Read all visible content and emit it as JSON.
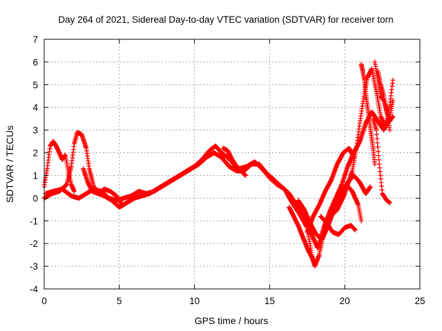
{
  "chart_data": {
    "type": "scatter",
    "title": "Day 264 of 2021, Sidereal Day-to-day VTEC variation (SDTVAR) for receiver torn",
    "xlabel": "GPS time / hours",
    "ylabel": "SDTVAR / TECUs",
    "xlim": [
      0,
      25
    ],
    "ylim": [
      -4,
      7
    ],
    "xticks": [
      "0",
      "5",
      "10",
      "15",
      "20",
      "25"
    ],
    "yticks": [
      "-4",
      "-3",
      "-2",
      "-1",
      "0",
      "1",
      "2",
      "3",
      "4",
      "5",
      "6",
      "7"
    ],
    "grid": true,
    "marker": "plus",
    "series": [
      {
        "name": "SDTVAR",
        "color": "#ff0000",
        "tracks": [
          [
            [
              0.0,
              0.5
            ],
            [
              0.2,
              1.3
            ],
            [
              0.4,
              2.3
            ],
            [
              0.6,
              2.5
            ],
            [
              0.8,
              2.3
            ],
            [
              1.0,
              2.0
            ],
            [
              1.2,
              1.7
            ],
            [
              1.4,
              1.9
            ],
            [
              1.6,
              1.2
            ],
            [
              1.8,
              0.6
            ],
            [
              2.0,
              0.3
            ]
          ],
          [
            [
              0.0,
              0.0
            ],
            [
              0.5,
              0.2
            ],
            [
              1.0,
              0.3
            ],
            [
              1.5,
              0.6
            ],
            [
              1.8,
              1.4
            ],
            [
              2.0,
              2.4
            ],
            [
              2.2,
              2.9
            ],
            [
              2.5,
              2.8
            ],
            [
              2.8,
              2.2
            ],
            [
              3.0,
              1.3
            ],
            [
              3.3,
              0.5
            ],
            [
              3.6,
              0.2
            ],
            [
              4.0,
              0.1
            ],
            [
              4.5,
              -0.1
            ],
            [
              5.0,
              -0.4
            ],
            [
              5.5,
              -0.2
            ],
            [
              6.0,
              0.0
            ],
            [
              6.5,
              0.1
            ],
            [
              7.0,
              0.2
            ],
            [
              7.5,
              0.4
            ],
            [
              8.0,
              0.6
            ],
            [
              8.5,
              0.8
            ],
            [
              9.0,
              1.0
            ],
            [
              9.5,
              1.2
            ],
            [
              10.0,
              1.4
            ],
            [
              10.5,
              1.7
            ],
            [
              11.0,
              2.1
            ],
            [
              11.4,
              2.3
            ],
            [
              11.8,
              2.0
            ],
            [
              12.2,
              1.8
            ],
            [
              12.6,
              1.5
            ],
            [
              13.0,
              1.3
            ],
            [
              13.5,
              1.4
            ],
            [
              14.0,
              1.6
            ],
            [
              14.5,
              1.3
            ],
            [
              15.0,
              0.9
            ],
            [
              15.5,
              0.6
            ],
            [
              16.0,
              0.4
            ],
            [
              16.5,
              -0.2
            ],
            [
              17.0,
              -0.7
            ],
            [
              17.5,
              -1.3
            ],
            [
              17.8,
              -2.5
            ],
            [
              18.0,
              -3.0
            ],
            [
              18.3,
              -2.5
            ],
            [
              18.6,
              -1.5
            ],
            [
              19.0,
              -0.8
            ],
            [
              19.5,
              -0.5
            ],
            [
              20.0,
              0.2
            ],
            [
              20.5,
              1.2
            ],
            [
              20.8,
              2.3
            ],
            [
              21.0,
              3.3
            ],
            [
              21.3,
              4.6
            ],
            [
              21.5,
              5.3
            ],
            [
              21.8,
              5.7
            ],
            [
              22.1,
              4.7
            ],
            [
              22.4,
              3.6
            ],
            [
              22.7,
              3.1
            ],
            [
              23.0,
              4.1
            ],
            [
              23.2,
              5.2
            ]
          ],
          [
            [
              0.1,
              0.2
            ],
            [
              0.6,
              0.3
            ],
            [
              1.2,
              0.4
            ],
            [
              1.8,
              0.1
            ],
            [
              2.3,
              0.0
            ],
            [
              2.8,
              0.2
            ],
            [
              3.3,
              0.4
            ],
            [
              3.8,
              0.3
            ],
            [
              4.3,
              0.0
            ],
            [
              4.8,
              -0.1
            ],
            [
              5.3,
              0.0
            ],
            [
              5.8,
              0.1
            ],
            [
              6.3,
              0.3
            ],
            [
              6.8,
              0.2
            ],
            [
              7.3,
              0.3
            ],
            [
              7.8,
              0.5
            ],
            [
              8.3,
              0.7
            ],
            [
              8.8,
              0.9
            ],
            [
              9.3,
              1.1
            ],
            [
              9.8,
              1.3
            ],
            [
              10.3,
              1.5
            ],
            [
              10.8,
              1.8
            ],
            [
              11.3,
              2.0
            ],
            [
              11.8,
              1.8
            ],
            [
              12.3,
              1.4
            ],
            [
              12.8,
              1.2
            ],
            [
              13.3,
              1.2
            ],
            [
              13.8,
              1.5
            ],
            [
              14.3,
              1.5
            ],
            [
              14.8,
              1.1
            ],
            [
              15.3,
              0.8
            ],
            [
              15.8,
              0.5
            ],
            [
              16.3,
              0.2
            ],
            [
              16.8,
              -0.3
            ],
            [
              17.3,
              -0.9
            ],
            [
              17.8,
              -1.6
            ],
            [
              18.2,
              -2.2
            ],
            [
              18.6,
              -1.3
            ],
            [
              19.0,
              -0.6
            ],
            [
              19.4,
              0.0
            ],
            [
              19.8,
              0.6
            ],
            [
              20.2,
              1.4
            ],
            [
              20.6,
              2.0
            ],
            [
              21.0,
              2.5
            ],
            [
              21.4,
              3.3
            ],
            [
              21.8,
              3.8
            ],
            [
              22.2,
              3.4
            ],
            [
              22.6,
              3.0
            ],
            [
              23.0,
              3.6
            ],
            [
              23.2,
              4.3
            ]
          ],
          [
            [
              2.6,
              1.3
            ],
            [
              2.9,
              0.7
            ],
            [
              3.2,
              0.3
            ],
            [
              3.6,
              0.2
            ],
            [
              4.0,
              0.4
            ],
            [
              4.4,
              0.3
            ],
            [
              4.8,
              0.1
            ],
            [
              5.2,
              -0.3
            ]
          ],
          [
            [
              11.9,
              2.2
            ],
            [
              12.2,
              2.1
            ],
            [
              12.5,
              1.7
            ],
            [
              12.8,
              1.4
            ],
            [
              13.1,
              1.2
            ],
            [
              13.4,
              1.0
            ]
          ],
          [
            [
              16.3,
              -0.4
            ],
            [
              16.6,
              -0.8
            ],
            [
              16.9,
              -1.2
            ],
            [
              17.2,
              -1.7
            ],
            [
              17.5,
              -2.2
            ],
            [
              17.8,
              -2.6
            ],
            [
              18.0,
              -2.9
            ]
          ],
          [
            [
              16.9,
              -0.1
            ],
            [
              17.3,
              -0.5
            ],
            [
              17.7,
              -1.1
            ],
            [
              18.1,
              -1.6
            ],
            [
              18.5,
              -1.8
            ],
            [
              18.9,
              -1.2
            ],
            [
              19.3,
              -0.5
            ],
            [
              19.7,
              0.2
            ],
            [
              20.1,
              0.6
            ],
            [
              20.5,
              0.3
            ],
            [
              20.9,
              -0.3
            ],
            [
              21.1,
              -1.0
            ]
          ],
          [
            [
              18.4,
              -0.8
            ],
            [
              18.8,
              -1.1
            ],
            [
              19.2,
              -1.5
            ],
            [
              19.6,
              -1.6
            ],
            [
              20.0,
              -1.3
            ],
            [
              20.4,
              -1.2
            ],
            [
              20.7,
              -1.4
            ]
          ],
          [
            [
              17.5,
              -1.5
            ],
            [
              17.9,
              -0.8
            ],
            [
              18.3,
              -0.3
            ],
            [
              18.7,
              0.3
            ],
            [
              19.1,
              0.8
            ],
            [
              19.5,
              1.5
            ],
            [
              19.9,
              2.0
            ],
            [
              20.3,
              2.2
            ],
            [
              20.6,
              1.8
            ]
          ],
          [
            [
              19.4,
              -0.6
            ],
            [
              19.8,
              0.1
            ],
            [
              20.2,
              0.7
            ],
            [
              20.6,
              1.0
            ],
            [
              21.0,
              0.7
            ],
            [
              21.4,
              0.2
            ],
            [
              21.7,
              0.5
            ]
          ],
          [
            [
              21.9,
              3.5
            ],
            [
              22.1,
              3.0
            ],
            [
              22.3,
              1.5
            ],
            [
              22.5,
              0.2
            ],
            [
              22.8,
              -0.1
            ],
            [
              23.0,
              -0.2
            ]
          ],
          [
            [
              21.1,
              5.9
            ],
            [
              21.2,
              5.6
            ],
            [
              21.3,
              5.2
            ],
            [
              21.4,
              4.6
            ],
            [
              21.5,
              4.1
            ],
            [
              21.6,
              3.6
            ],
            [
              21.7,
              3.1
            ],
            [
              21.8,
              2.6
            ],
            [
              21.9,
              2.1
            ],
            [
              22.0,
              1.5
            ]
          ],
          [
            [
              22.0,
              6.0
            ],
            [
              22.2,
              5.2
            ],
            [
              22.4,
              4.5
            ],
            [
              22.6,
              4.3
            ],
            [
              22.8,
              3.8
            ],
            [
              23.0,
              3.0
            ]
          ],
          [
            [
              22.2,
              5.6
            ],
            [
              22.4,
              5.0
            ],
            [
              22.6,
              4.5
            ],
            [
              22.8,
              3.8
            ],
            [
              23.0,
              3.4
            ],
            [
              23.2,
              3.6
            ]
          ]
        ]
      }
    ]
  }
}
